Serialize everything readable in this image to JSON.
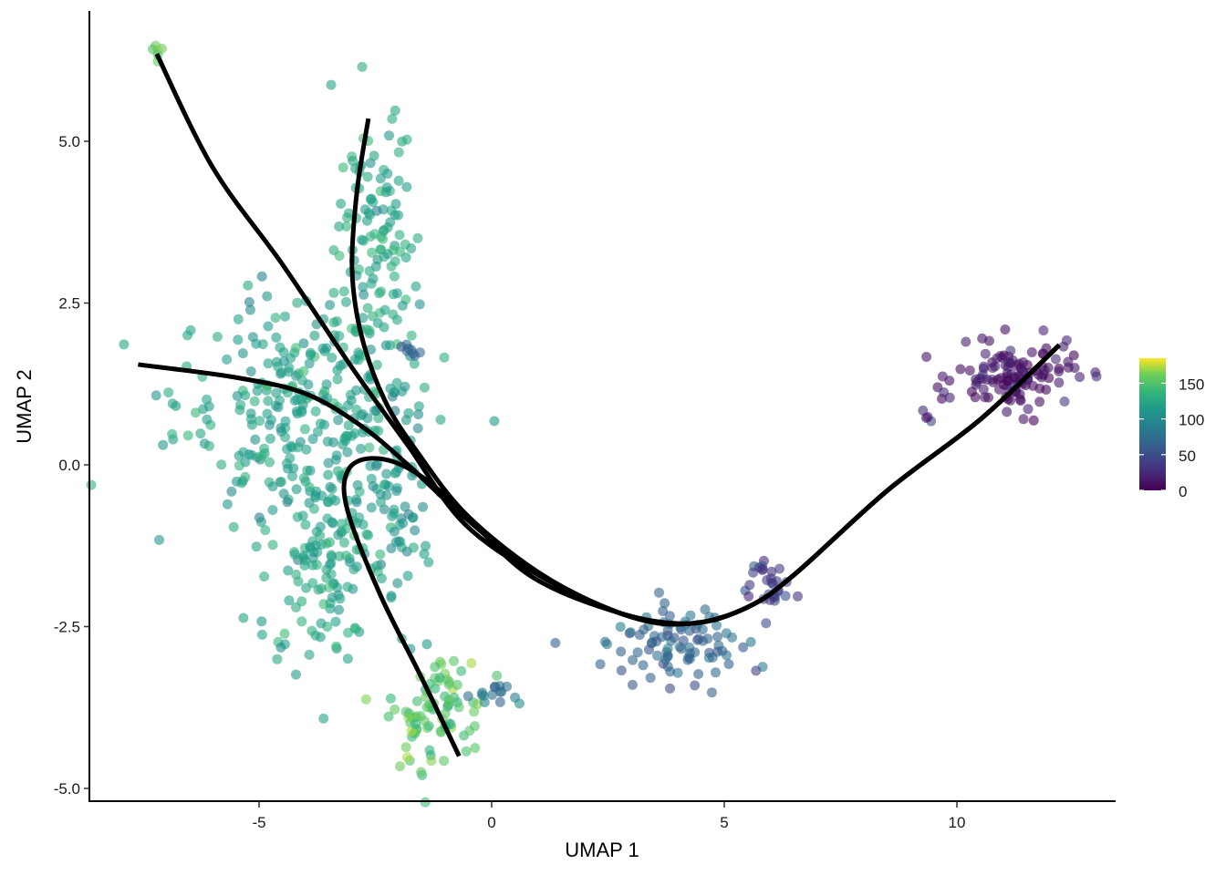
{
  "chart_data": {
    "type": "scatter",
    "title": "",
    "xlabel": "UMAP 1",
    "ylabel": "UMAP 2",
    "xlim": [
      -8.5,
      13.5
    ],
    "ylim": [
      -5.25,
      6.95
    ],
    "x_ticks": [
      -5,
      0,
      5,
      10
    ],
    "x_tick_labels": [
      "-5",
      "0",
      "5",
      "10"
    ],
    "y_ticks": [
      -5.0,
      -2.5,
      0.0,
      2.5,
      5.0
    ],
    "y_tick_labels": [
      "-5.0",
      "-2.5",
      "0.0",
      "2.5",
      "5.0"
    ],
    "grid": false,
    "color_scale": {
      "name": "viridis",
      "title": "",
      "range": [
        0,
        185
      ],
      "ticks": [
        0,
        50,
        100,
        150
      ],
      "tick_labels": [
        "0",
        "50",
        "100",
        "150"
      ],
      "position": "right"
    },
    "point_alpha": 0.6,
    "clusters": [
      {
        "name": "top-left-tip",
        "center": [
          -7.2,
          6.4
        ],
        "spread": [
          0.08,
          0.08
        ],
        "n": 6,
        "value": 165
      },
      {
        "name": "upper-column",
        "center": [
          -2.5,
          3.4
        ],
        "spread": [
          0.45,
          1.1
        ],
        "n": 120,
        "value": 125
      },
      {
        "name": "left-mass",
        "center": [
          -4.2,
          1.0
        ],
        "spread": [
          1.3,
          0.85
        ],
        "n": 260,
        "value": 118
      },
      {
        "name": "lower-left-mass",
        "center": [
          -3.6,
          -1.3
        ],
        "spread": [
          0.7,
          0.9
        ],
        "n": 150,
        "value": 120
      },
      {
        "name": "mid-column",
        "center": [
          -2.0,
          -0.6
        ],
        "spread": [
          0.3,
          1.0
        ],
        "n": 60,
        "value": 108
      },
      {
        "name": "blue-blob-small",
        "center": [
          -1.7,
          1.75
        ],
        "spread": [
          0.15,
          0.07
        ],
        "n": 8,
        "value": 70
      },
      {
        "name": "bottom-green",
        "center": [
          -1.2,
          -3.8
        ],
        "spread": [
          0.5,
          0.45
        ],
        "n": 90,
        "value": 150
      },
      {
        "name": "bottom-teal",
        "center": [
          0.2,
          -3.55
        ],
        "spread": [
          0.25,
          0.1
        ],
        "n": 14,
        "value": 80
      },
      {
        "name": "center-cluster",
        "center": [
          4.0,
          -2.8
        ],
        "spread": [
          0.7,
          0.3
        ],
        "n": 90,
        "value": 70
      },
      {
        "name": "right-arm",
        "center": [
          5.9,
          -1.85
        ],
        "spread": [
          0.25,
          0.25
        ],
        "n": 30,
        "value": 40
      },
      {
        "name": "far-right",
        "center": [
          11.3,
          1.35
        ],
        "spread": [
          0.65,
          0.25
        ],
        "n": 120,
        "value": 12
      },
      {
        "name": "far-right-stray",
        "center": [
          9.4,
          0.75
        ],
        "spread": [
          0.08,
          0.05
        ],
        "n": 4,
        "value": 30
      }
    ],
    "lineages": [
      {
        "name": "lineage-1",
        "points": [
          [
            -7.2,
            6.35
          ],
          [
            -6.0,
            4.6
          ],
          [
            -4.5,
            3.1
          ],
          [
            -3.0,
            1.5
          ],
          [
            -1.8,
            0.3
          ],
          [
            -0.6,
            -0.9
          ],
          [
            1.0,
            -1.7
          ],
          [
            3.0,
            -2.35
          ],
          [
            4.3,
            -2.45
          ],
          [
            5.5,
            -2.2
          ],
          [
            6.5,
            -1.7
          ],
          [
            8.5,
            -0.4
          ],
          [
            10.5,
            0.7
          ],
          [
            12.2,
            1.85
          ]
        ]
      },
      {
        "name": "lineage-2",
        "points": [
          [
            -2.65,
            5.35
          ],
          [
            -2.9,
            4.2
          ],
          [
            -3.0,
            3.0
          ],
          [
            -2.8,
            2.0
          ],
          [
            -2.3,
            1.0
          ],
          [
            -1.6,
            0.2
          ],
          [
            -0.5,
            -0.8
          ],
          [
            1.2,
            -1.75
          ],
          [
            3.0,
            -2.35
          ],
          [
            4.3,
            -2.45
          ],
          [
            5.5,
            -2.2
          ],
          [
            6.5,
            -1.7
          ],
          [
            8.5,
            -0.4
          ],
          [
            10.5,
            0.7
          ],
          [
            12.2,
            1.85
          ]
        ]
      },
      {
        "name": "lineage-3",
        "points": [
          [
            -7.6,
            1.55
          ],
          [
            -5.5,
            1.35
          ],
          [
            -4.0,
            1.1
          ],
          [
            -2.8,
            0.6
          ],
          [
            -1.8,
            0.0
          ],
          [
            -0.6,
            -0.8
          ],
          [
            1.0,
            -1.7
          ],
          [
            3.0,
            -2.35
          ],
          [
            4.3,
            -2.45
          ],
          [
            5.5,
            -2.2
          ],
          [
            6.5,
            -1.7
          ],
          [
            8.5,
            -0.4
          ],
          [
            10.5,
            0.7
          ],
          [
            12.2,
            1.85
          ]
        ]
      },
      {
        "name": "lineage-4",
        "points": [
          [
            -0.7,
            -4.5
          ],
          [
            -1.5,
            -3.3
          ],
          [
            -2.4,
            -2.0
          ],
          [
            -3.1,
            -0.7
          ],
          [
            -3.1,
            -0.1
          ],
          [
            -2.6,
            0.1
          ],
          [
            -1.8,
            -0.05
          ],
          [
            -0.8,
            -0.6
          ],
          [
            0.8,
            -1.7
          ],
          [
            2.8,
            -2.3
          ],
          [
            4.3,
            -2.45
          ],
          [
            5.5,
            -2.2
          ],
          [
            6.5,
            -1.7
          ],
          [
            8.5,
            -0.4
          ],
          [
            10.5,
            0.7
          ],
          [
            12.2,
            1.85
          ]
        ]
      }
    ]
  }
}
